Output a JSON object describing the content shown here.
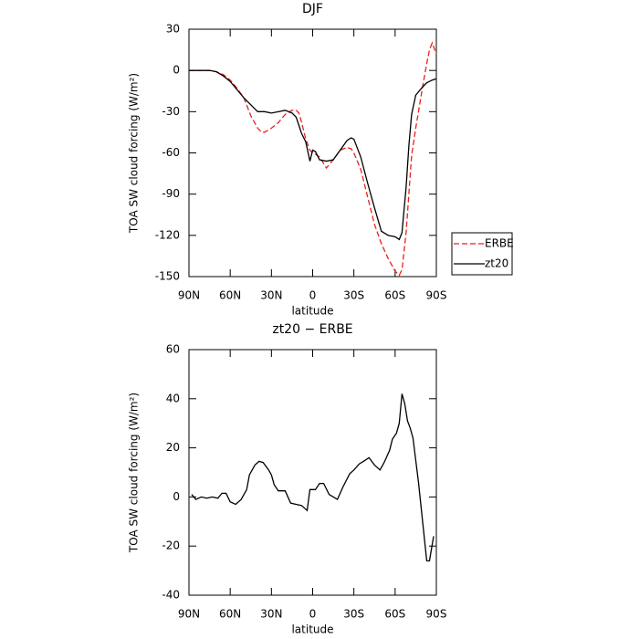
{
  "chart_data": [
    {
      "type": "line",
      "title": "DJF",
      "xlabel": "latitude",
      "ylabel": "TOA SW cloud forcing (W/m²)",
      "xlim": [
        90,
        -90
      ],
      "ylim": [
        -150,
        30
      ],
      "xticks": [
        {
          "value": 90,
          "label": "90N"
        },
        {
          "value": 60,
          "label": "60N"
        },
        {
          "value": 30,
          "label": "30N"
        },
        0,
        {
          "value": -30,
          "label": "30S"
        },
        {
          "value": -60,
          "label": "60S"
        },
        {
          "value": -90,
          "label": "90S"
        }
      ],
      "yticks": [
        -150,
        -120,
        -90,
        -60,
        -30,
        0,
        30
      ],
      "legend": "right",
      "series": [
        {
          "name": "ERBE",
          "color": "#e8201f",
          "dash": true,
          "x": [
            90,
            85,
            80,
            75,
            70,
            65,
            60,
            55,
            50,
            45,
            40,
            37,
            35,
            30,
            25,
            20,
            15,
            12,
            10,
            8,
            5,
            2,
            0,
            -2,
            -5,
            -10,
            -15,
            -20,
            -25,
            -28,
            -30,
            -35,
            -40,
            -45,
            -50,
            -55,
            -60,
            -63,
            -65,
            -68,
            -70,
            -72,
            -75,
            -80,
            -83,
            -85,
            -87,
            -90
          ],
          "values": [
            0,
            0,
            0,
            0,
            -1,
            -3,
            -7,
            -13,
            -20,
            -33,
            -42,
            -45,
            -45,
            -42,
            -38,
            -32,
            -29,
            -29,
            -31,
            -38,
            -50,
            -58,
            -60,
            -61,
            -63,
            -71,
            -65,
            -58,
            -56,
            -57,
            -60,
            -72,
            -92,
            -112,
            -126,
            -137,
            -146,
            -149,
            -145,
            -118,
            -90,
            -62,
            -42,
            -12,
            5,
            15,
            20,
            12
          ]
        },
        {
          "name": "zt20",
          "color": "#000000",
          "dash": false,
          "x": [
            90,
            85,
            80,
            75,
            70,
            65,
            60,
            55,
            50,
            45,
            40,
            37,
            35,
            30,
            25,
            20,
            15,
            12,
            10,
            8,
            5,
            2,
            0,
            -2,
            -5,
            -10,
            -15,
            -20,
            -25,
            -28,
            -30,
            -35,
            -40,
            -45,
            -50,
            -55,
            -60,
            -63,
            -65,
            -68,
            -70,
            -72,
            -75,
            -80,
            -83,
            -85,
            -87,
            -90
          ],
          "values": [
            0,
            0,
            0,
            0,
            -1,
            -4,
            -8,
            -14,
            -20,
            -25,
            -30,
            -30,
            -30,
            -31,
            -30,
            -29,
            -31,
            -34,
            -40,
            -46,
            -52,
            -66,
            -58,
            -59,
            -65,
            -66,
            -65,
            -58,
            -51,
            -49,
            -50,
            -63,
            -82,
            -100,
            -117,
            -120,
            -121,
            -123,
            -118,
            -85,
            -55,
            -32,
            -18,
            -12,
            -9,
            -8,
            -7,
            -6
          ]
        }
      ]
    },
    {
      "type": "line",
      "title": "zt20 − ERBE",
      "xlabel": "latitude",
      "ylabel": "TOA SW cloud forcing (W/m²)",
      "xlim": [
        90,
        -90
      ],
      "ylim": [
        -40,
        60
      ],
      "xticks": [
        {
          "value": 90,
          "label": "90N"
        },
        {
          "value": 60,
          "label": "60N"
        },
        {
          "value": 30,
          "label": "30N"
        },
        0,
        {
          "value": -30,
          "label": "30S"
        },
        {
          "value": -60,
          "label": "60S"
        },
        {
          "value": -90,
          "label": "90S"
        }
      ],
      "yticks": [
        -40,
        -20,
        0,
        20,
        40,
        60
      ],
      "series": [
        {
          "color": "#000000",
          "dash": false,
          "x": [
            88,
            85,
            81,
            77,
            73,
            69,
            66,
            63,
            60,
            56,
            52,
            48,
            46,
            42,
            39,
            36,
            32,
            30,
            28,
            25,
            20,
            16,
            12,
            8,
            4,
            2,
            -2,
            -5,
            -8,
            -12,
            -18,
            -22,
            -27,
            -30,
            -34,
            -37,
            -41,
            -45,
            -49,
            -52,
            -56,
            -58,
            -61,
            -63,
            -65,
            -67,
            -69,
            -71,
            -73,
            -77,
            -80,
            -83,
            -85,
            -88
          ],
          "values": [
            1,
            -1,
            0,
            -0.5,
            0,
            -0.5,
            1.5,
            1.5,
            -2,
            -3,
            -1,
            3,
            9,
            13,
            14.5,
            14,
            11,
            9,
            5,
            2.5,
            2.5,
            -2.5,
            -3,
            -3.5,
            -5.5,
            3,
            3,
            5.5,
            5.5,
            1,
            -1,
            4,
            9.5,
            11,
            13.5,
            14.5,
            16,
            13,
            11,
            14,
            19,
            23.5,
            26,
            30,
            42,
            38,
            31,
            28,
            24,
            6,
            -10,
            -26,
            -26,
            -16
          ]
        }
      ]
    }
  ]
}
